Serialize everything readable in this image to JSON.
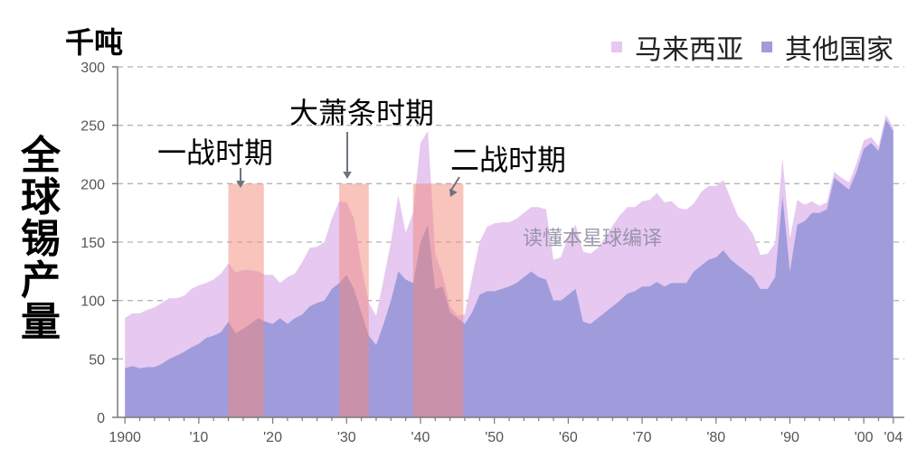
{
  "chart_data": {
    "type": "area",
    "unit_label": "千吨",
    "ylabel": "全球锡产量",
    "ylim": [
      0,
      300
    ],
    "yticks": [
      0,
      50,
      100,
      150,
      200,
      250,
      300
    ],
    "xlim": [
      1899,
      2005
    ],
    "xticks": [
      {
        "value": 1900,
        "label": "1900"
      },
      {
        "value": 1910,
        "label": "'10"
      },
      {
        "value": 1920,
        "label": "'20"
      },
      {
        "value": 1930,
        "label": "'30"
      },
      {
        "value": 1940,
        "label": "'40"
      },
      {
        "value": 1950,
        "label": "'50"
      },
      {
        "value": 1960,
        "label": "'60"
      },
      {
        "value": 1970,
        "label": "'70"
      },
      {
        "value": 1980,
        "label": "'80"
      },
      {
        "value": 1990,
        "label": "'90"
      },
      {
        "value": 2000,
        "label": "'00"
      },
      {
        "value": 2004,
        "label": "'04"
      }
    ],
    "stacked": true,
    "series": [
      {
        "name": "其他国家",
        "color": "#a09bdb",
        "points": [
          [
            1900,
            42
          ],
          [
            1901,
            44
          ],
          [
            1902,
            42
          ],
          [
            1903,
            43
          ],
          [
            1904,
            43
          ],
          [
            1905,
            46
          ],
          [
            1906,
            50
          ],
          [
            1907,
            53
          ],
          [
            1908,
            56
          ],
          [
            1909,
            60
          ],
          [
            1910,
            63
          ],
          [
            1911,
            68
          ],
          [
            1912,
            70
          ],
          [
            1913,
            73
          ],
          [
            1914,
            82
          ],
          [
            1915,
            72
          ],
          [
            1916,
            76
          ],
          [
            1917,
            80
          ],
          [
            1918,
            85
          ],
          [
            1919,
            82
          ],
          [
            1920,
            80
          ],
          [
            1921,
            85
          ],
          [
            1922,
            80
          ],
          [
            1923,
            85
          ],
          [
            1924,
            88
          ],
          [
            1925,
            95
          ],
          [
            1926,
            98
          ],
          [
            1927,
            100
          ],
          [
            1928,
            110
          ],
          [
            1929,
            115
          ],
          [
            1930,
            122
          ],
          [
            1931,
            110
          ],
          [
            1932,
            90
          ],
          [
            1933,
            70
          ],
          [
            1934,
            62
          ],
          [
            1935,
            80
          ],
          [
            1936,
            100
          ],
          [
            1937,
            125
          ],
          [
            1938,
            118
          ],
          [
            1939,
            115
          ],
          [
            1940,
            150
          ],
          [
            1941,
            165
          ],
          [
            1942,
            110
          ],
          [
            1943,
            112
          ],
          [
            1944,
            90
          ],
          [
            1945,
            85
          ],
          [
            1946,
            80
          ],
          [
            1947,
            90
          ],
          [
            1948,
            105
          ],
          [
            1949,
            108
          ],
          [
            1950,
            108
          ],
          [
            1951,
            110
          ],
          [
            1952,
            112
          ],
          [
            1953,
            115
          ],
          [
            1954,
            120
          ],
          [
            1955,
            125
          ],
          [
            1956,
            120
          ],
          [
            1957,
            118
          ],
          [
            1958,
            100
          ],
          [
            1959,
            100
          ],
          [
            1960,
            105
          ],
          [
            1961,
            110
          ],
          [
            1962,
            82
          ],
          [
            1963,
            80
          ],
          [
            1964,
            85
          ],
          [
            1965,
            90
          ],
          [
            1966,
            95
          ],
          [
            1967,
            100
          ],
          [
            1968,
            106
          ],
          [
            1969,
            108
          ],
          [
            1970,
            112
          ],
          [
            1971,
            112
          ],
          [
            1972,
            116
          ],
          [
            1973,
            112
          ],
          [
            1974,
            115
          ],
          [
            1975,
            115
          ],
          [
            1976,
            115
          ],
          [
            1977,
            125
          ],
          [
            1978,
            130
          ],
          [
            1979,
            135
          ],
          [
            1980,
            137
          ],
          [
            1981,
            143
          ],
          [
            1982,
            135
          ],
          [
            1983,
            130
          ],
          [
            1984,
            125
          ],
          [
            1985,
            120
          ],
          [
            1986,
            110
          ],
          [
            1987,
            110
          ],
          [
            1988,
            120
          ],
          [
            1989,
            190
          ],
          [
            1990,
            125
          ],
          [
            1991,
            165
          ],
          [
            1992,
            168
          ],
          [
            1993,
            175
          ],
          [
            1994,
            175
          ],
          [
            1995,
            178
          ],
          [
            1996,
            205
          ],
          [
            1997,
            200
          ],
          [
            1998,
            195
          ],
          [
            1999,
            210
          ],
          [
            2000,
            230
          ],
          [
            2001,
            235
          ],
          [
            2002,
            228
          ],
          [
            2003,
            255
          ],
          [
            2004,
            245
          ]
        ]
      },
      {
        "name": "马来西亚",
        "color": "#e6c8f0",
        "points": [
          [
            1900,
            43
          ],
          [
            1901,
            45
          ],
          [
            1902,
            47
          ],
          [
            1903,
            49
          ],
          [
            1904,
            51
          ],
          [
            1905,
            52
          ],
          [
            1906,
            52
          ],
          [
            1907,
            49
          ],
          [
            1908,
            48
          ],
          [
            1909,
            50
          ],
          [
            1910,
            50
          ],
          [
            1911,
            47
          ],
          [
            1912,
            48
          ],
          [
            1913,
            50
          ],
          [
            1914,
            50
          ],
          [
            1915,
            52
          ],
          [
            1916,
            50
          ],
          [
            1917,
            46
          ],
          [
            1918,
            40
          ],
          [
            1919,
            40
          ],
          [
            1920,
            42
          ],
          [
            1921,
            30
          ],
          [
            1922,
            40
          ],
          [
            1923,
            38
          ],
          [
            1924,
            45
          ],
          [
            1925,
            50
          ],
          [
            1926,
            48
          ],
          [
            1927,
            50
          ],
          [
            1928,
            60
          ],
          [
            1929,
            70
          ],
          [
            1930,
            62
          ],
          [
            1931,
            60
          ],
          [
            1932,
            40
          ],
          [
            1933,
            28
          ],
          [
            1934,
            25
          ],
          [
            1935,
            38
          ],
          [
            1936,
            50
          ],
          [
            1937,
            65
          ],
          [
            1938,
            40
          ],
          [
            1939,
            60
          ],
          [
            1940,
            85
          ],
          [
            1941,
            80
          ],
          [
            1942,
            30
          ],
          [
            1943,
            10
          ],
          [
            1944,
            5
          ],
          [
            1945,
            2
          ],
          [
            1946,
            8
          ],
          [
            1947,
            30
          ],
          [
            1948,
            45
          ],
          [
            1949,
            55
          ],
          [
            1950,
            58
          ],
          [
            1951,
            57
          ],
          [
            1952,
            55
          ],
          [
            1953,
            55
          ],
          [
            1954,
            55
          ],
          [
            1955,
            55
          ],
          [
            1956,
            60
          ],
          [
            1957,
            60
          ],
          [
            1958,
            35
          ],
          [
            1959,
            37
          ],
          [
            1960,
            50
          ],
          [
            1961,
            55
          ],
          [
            1962,
            60
          ],
          [
            1963,
            60
          ],
          [
            1964,
            60
          ],
          [
            1965,
            64
          ],
          [
            1966,
            69
          ],
          [
            1967,
            73
          ],
          [
            1968,
            74
          ],
          [
            1969,
            72
          ],
          [
            1970,
            73
          ],
          [
            1971,
            74
          ],
          [
            1972,
            76
          ],
          [
            1973,
            72
          ],
          [
            1974,
            70
          ],
          [
            1975,
            64
          ],
          [
            1976,
            63
          ],
          [
            1977,
            58
          ],
          [
            1978,
            63
          ],
          [
            1979,
            63
          ],
          [
            1980,
            61
          ],
          [
            1981,
            60
          ],
          [
            1982,
            52
          ],
          [
            1983,
            42
          ],
          [
            1984,
            41
          ],
          [
            1985,
            37
          ],
          [
            1986,
            29
          ],
          [
            1987,
            30
          ],
          [
            1988,
            29
          ],
          [
            1989,
            32
          ],
          [
            1990,
            28
          ],
          [
            1991,
            21
          ],
          [
            1992,
            14
          ],
          [
            1993,
            10
          ],
          [
            1994,
            6
          ],
          [
            1995,
            6
          ],
          [
            1996,
            5
          ],
          [
            1997,
            5
          ],
          [
            1998,
            6
          ],
          [
            1999,
            7
          ],
          [
            2000,
            7
          ],
          [
            2001,
            5
          ],
          [
            2002,
            4
          ],
          [
            2003,
            4
          ],
          [
            2004,
            3
          ]
        ]
      }
    ],
    "annotations": [
      {
        "label": "一战时期",
        "start": 1914,
        "end": 1918.8
      },
      {
        "label": "大萧条时期",
        "start": 1929,
        "end": 1933
      },
      {
        "label": "二战时期",
        "start": 1939,
        "end": 1945.8
      }
    ],
    "shade_top": 200,
    "shade_color": "#f28a7a",
    "legend_position": "top-right",
    "grid": true,
    "watermark": "读懂本星球编译"
  }
}
